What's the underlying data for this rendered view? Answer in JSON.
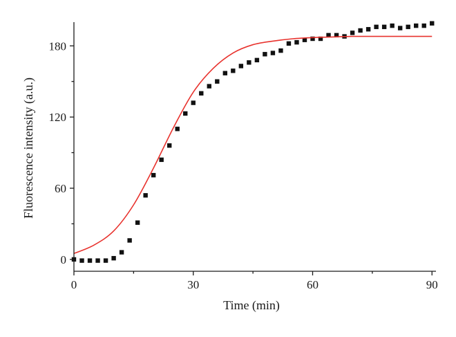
{
  "chart_data": {
    "type": "scatter",
    "title": "",
    "xlabel": "Time (min)",
    "ylabel": "Fluorescence intensity (a.u.)",
    "xlim": [
      0,
      91
    ],
    "ylim": [
      -10,
      200
    ],
    "xticks_major": [
      0,
      30,
      60,
      90
    ],
    "xticks_minor": [
      15,
      45,
      75
    ],
    "yticks_major": [
      0,
      60,
      120,
      180
    ],
    "yticks_minor": [
      30,
      90,
      150
    ],
    "grid": false,
    "legend": "none",
    "series": [
      {
        "kind": "points",
        "marker": "square",
        "color": "#111111",
        "x": [
          0,
          2,
          4,
          6,
          8,
          10,
          12,
          14,
          16,
          18,
          20,
          22,
          24,
          26,
          28,
          30,
          32,
          34,
          36,
          38,
          40,
          42,
          44,
          46,
          48,
          50,
          52,
          54,
          56,
          58,
          60,
          62,
          64,
          66,
          68,
          70,
          72,
          74,
          76,
          78,
          80,
          82,
          84,
          86,
          88,
          90
        ],
        "y": [
          0,
          -1,
          -1,
          -1,
          -1,
          1,
          6,
          16,
          31,
          54,
          71,
          84,
          96,
          110,
          123,
          132,
          140,
          146,
          150,
          157,
          159,
          163,
          166,
          168,
          173,
          174,
          176,
          182,
          183,
          185,
          186,
          186,
          189,
          189,
          188,
          191,
          193,
          194,
          196,
          196,
          197,
          195,
          196,
          197,
          197,
          199
        ]
      },
      {
        "kind": "fit-curve",
        "color": "#e8322d",
        "x": [
          0,
          5,
          10,
          15,
          20,
          25,
          30,
          35,
          40,
          45,
          50,
          55,
          60,
          65,
          70,
          75,
          80,
          85,
          90
        ],
        "y": [
          5,
          12,
          24,
          46,
          77,
          111,
          141,
          161,
          174,
          181,
          184,
          186,
          187,
          187.5,
          188,
          188,
          188,
          188,
          188
        ]
      }
    ]
  }
}
